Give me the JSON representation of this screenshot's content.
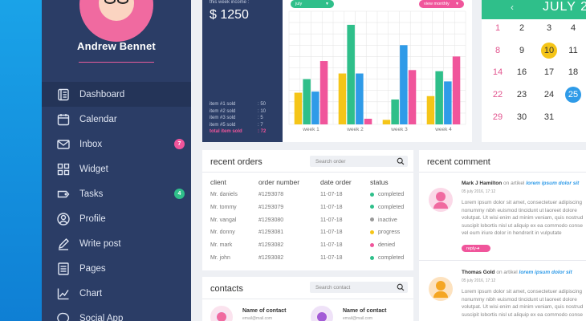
{
  "profile": {
    "name": "Andrew Bennet"
  },
  "nav": [
    {
      "label": "Dashboard",
      "icon": "dashboard-icon",
      "active": true
    },
    {
      "label": "Calendar",
      "icon": "calendar-icon"
    },
    {
      "label": "Inbox",
      "icon": "mail-icon",
      "badge": "7",
      "badge_color": "#f0559b"
    },
    {
      "label": "Widget",
      "icon": "widget-grid-icon"
    },
    {
      "label": "Tasks",
      "icon": "tag-icon",
      "badge": "4",
      "badge_color": "#2fbf8a"
    },
    {
      "label": "Profile",
      "icon": "user-icon"
    },
    {
      "label": "Write post",
      "icon": "pen-icon"
    },
    {
      "label": "Pages",
      "icon": "pages-icon"
    },
    {
      "label": "Chart",
      "icon": "chart-icon"
    },
    {
      "label": "Social App",
      "icon": "chat-icon"
    }
  ],
  "income": {
    "label": "this week income :",
    "value": "$ 1250",
    "items": [
      {
        "label": "item #1 sold",
        "value": ": 50"
      },
      {
        "label": "item #2 sold",
        "value": ": 10"
      },
      {
        "label": "item #3 sold",
        "value": ": 5"
      },
      {
        "label": "item #5 sold",
        "value": ": 7"
      },
      {
        "label": "total item sold",
        "value": ": 72",
        "total": true
      }
    ]
  },
  "chart_controls": {
    "month_select": "july",
    "view_select": "view monthly"
  },
  "chart_data": {
    "type": "bar",
    "categories": [
      "week 1",
      "week 2",
      "week 3",
      "week 4"
    ],
    "series": [
      {
        "color": "#f5c518",
        "values": [
          28,
          45,
          4,
          25
        ]
      },
      {
        "color": "#2fbf8a",
        "values": [
          40,
          88,
          22,
          47
        ]
      },
      {
        "color": "#2f9be8",
        "values": [
          29,
          45,
          70,
          38
        ]
      },
      {
        "color": "#f0559b",
        "values": [
          56,
          5,
          48,
          60
        ]
      }
    ],
    "ylim": [
      0,
      100
    ],
    "grid": true
  },
  "calendar": {
    "month": "JULY 20",
    "prev_icon": "chevron-left-icon",
    "weeks": [
      [
        {
          "d": "1",
          "w": true
        },
        {
          "d": "2"
        },
        {
          "d": "3"
        },
        {
          "d": "4"
        }
      ],
      [
        {
          "d": "8",
          "w": true
        },
        {
          "d": "9"
        },
        {
          "d": "10",
          "today": true
        },
        {
          "d": "11"
        }
      ],
      [
        {
          "d": "14",
          "w": true
        },
        {
          "d": "16"
        },
        {
          "d": "17"
        },
        {
          "d": "18"
        }
      ],
      [
        {
          "d": "22",
          "w": true
        },
        {
          "d": "23"
        },
        {
          "d": "24"
        },
        {
          "d": "25",
          "selected": true
        }
      ],
      [
        {
          "d": "29",
          "w": true
        },
        {
          "d": "30"
        },
        {
          "d": "31"
        }
      ]
    ]
  },
  "orders": {
    "title": "recent orders",
    "search_placeholder": "Search order",
    "columns": [
      "client",
      "order number",
      "date order",
      "status"
    ],
    "rows": [
      {
        "client": "Mr. daniels",
        "number": "#1293078",
        "date": "11-07-18",
        "status": "completed",
        "color": "#2fbf8a"
      },
      {
        "client": "Mr. tommy",
        "number": "#1293079",
        "date": "11-07-18",
        "status": "completed",
        "color": "#2fbf8a"
      },
      {
        "client": "Mr. vangal",
        "number": "#1293080",
        "date": "11-07-18",
        "status": "inactive",
        "color": "#999999"
      },
      {
        "client": "Mr. donny",
        "number": "#1293081",
        "date": "11-07-18",
        "status": "progress",
        "color": "#f5c518"
      },
      {
        "client": "Mr. mark",
        "number": "#1293082",
        "date": "11-07-18",
        "status": "denied",
        "color": "#f0559b"
      },
      {
        "client": "Mr. john",
        "number": "#1293082",
        "date": "11-07-18",
        "status": "completed",
        "color": "#2fbf8a"
      }
    ]
  },
  "contacts": {
    "title": "contacts",
    "search_placeholder": "Search contact",
    "items": [
      {
        "name": "Name of contact",
        "sub": "email@mail.com",
        "color": "#f06aa0"
      },
      {
        "name": "Name of contact",
        "sub": "email@mail.com",
        "color": "#a35bd6"
      }
    ]
  },
  "comments": {
    "title": "recent comment",
    "items": [
      {
        "name": "Mark J Hamilton",
        "on": "on artikel",
        "article": "lorem ipsum dolor sit",
        "date": "05 july 2016, 17:12",
        "avatar_color": "#f06aa0",
        "lines": [
          "Lorem ipsum dolor sit amet, consectetuer adipiscing",
          "nonummy nibh euismod tincidunt ut laoreet dolore",
          "volutpat. Ut wisi enim ad minim veniam, quis nostrud",
          "suscipit lobortis nisl ut aliquip ex ea commodo conse",
          "vel eum iriure dolor in hendrerit in vulputate"
        ],
        "reply": "reply"
      },
      {
        "name": "Thomas Gold",
        "on": "on artikel",
        "article": "lorem ipsum dolor sit",
        "date": "05 july 2016, 17:12",
        "avatar_color": "#f5a623",
        "lines": [
          "Lorem ipsum dolor sit amet, consectetuer adipiscing",
          "nonummy nibh euismod tincidunt ut laoreet dolore",
          "volutpat. Ut wisi enim ad minim veniam, quis nostrud",
          "suscipit lobortis nisl ut aliquip ex ea commodo conse"
        ]
      }
    ]
  }
}
